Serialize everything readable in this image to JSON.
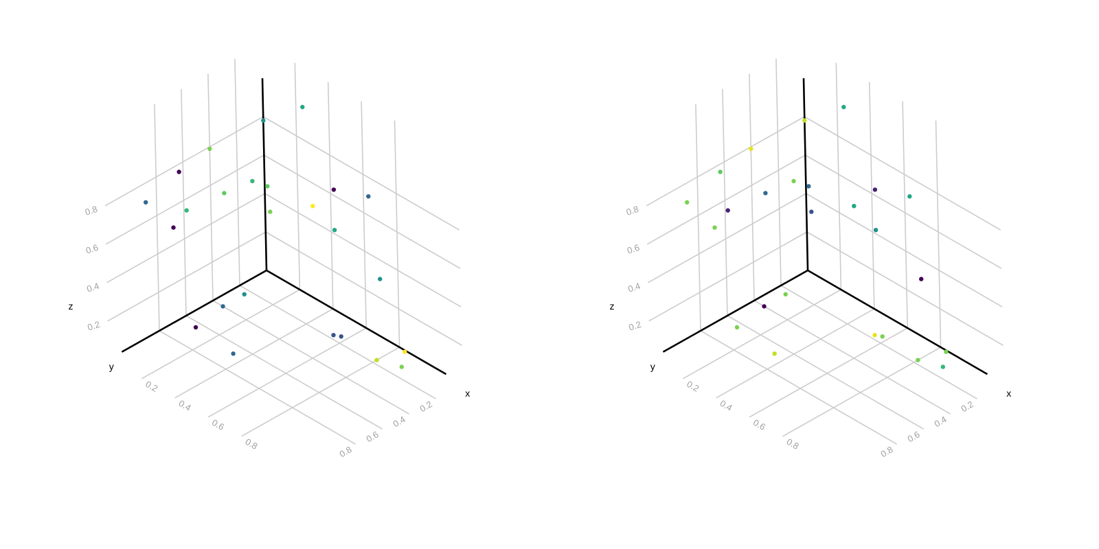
{
  "chart_data": [
    {
      "type": "scatter",
      "title": "",
      "xlabel": "x",
      "ylabel": "y",
      "zlabel": "z",
      "xlim": [
        0,
        1
      ],
      "ylim": [
        0,
        1
      ],
      "zlim": [
        0,
        1
      ],
      "x_ticks": [
        "0.2",
        "0.4",
        "0.6",
        "0.8"
      ],
      "y_ticks": [
        "0.2",
        "0.4",
        "0.6",
        "0.8"
      ],
      "z_ticks": [
        "0.2",
        "0.4",
        "0.6",
        "0.8"
      ],
      "colormap": "viridis",
      "grid": true,
      "points": [
        {
          "x": 0.24,
          "y": 0.0,
          "z": 0.97,
          "c": "#23a884"
        },
        {
          "x": 0.42,
          "y": 0.0,
          "z": 0.63,
          "c": "#440154"
        },
        {
          "x": 0.63,
          "y": 0.0,
          "z": 0.7,
          "c": "#31688e"
        },
        {
          "x": 0.29,
          "y": 0.0,
          "z": 0.48,
          "c": "#fde725"
        },
        {
          "x": 0.42,
          "y": 0.0,
          "z": 0.42,
          "c": "#22a884"
        },
        {
          "x": 0.69,
          "y": 0.0,
          "z": 0.3,
          "c": "#21918c"
        },
        {
          "x": 0.03,
          "y": 0.0,
          "z": 0.32,
          "c": "#7ad151"
        },
        {
          "x": 0.0,
          "y": 0.0,
          "z": 0.78,
          "c": "#21918c"
        },
        {
          "x": 0.0,
          "y": 0.4,
          "z": 0.79,
          "c": "#7ad151"
        },
        {
          "x": 0.0,
          "y": 0.63,
          "z": 0.76,
          "c": "#440154"
        },
        {
          "x": 0.0,
          "y": 0.88,
          "z": 0.7,
          "c": "#31688e"
        },
        {
          "x": 0.0,
          "y": 0.58,
          "z": 0.54,
          "c": "#35b779"
        },
        {
          "x": 0.0,
          "y": 0.68,
          "z": 0.49,
          "c": "#440154"
        },
        {
          "x": 0.0,
          "y": 0.3,
          "z": 0.52,
          "c": "#5ec962"
        },
        {
          "x": 0.0,
          "y": 0.09,
          "z": 0.5,
          "c": "#35b779"
        },
        {
          "x": 0.0,
          "y": -0.02,
          "z": 0.43,
          "c": "#5ec962"
        },
        {
          "x": 0.06,
          "y": 0.24,
          "z": 0.0,
          "c": "#21918c"
        },
        {
          "x": 0.06,
          "y": 0.4,
          "z": 0.0,
          "c": "#31688e"
        },
        {
          "x": 0.09,
          "y": 0.64,
          "z": 0.0,
          "c": "#440154"
        },
        {
          "x": 0.34,
          "y": 0.67,
          "z": 0.0,
          "c": "#31688e"
        },
        {
          "x": 0.54,
          "y": 0.17,
          "z": 0.0,
          "c": "#3b528b"
        },
        {
          "x": 0.57,
          "y": 0.15,
          "z": 0.0,
          "c": "#3b528b"
        },
        {
          "x": 0.84,
          "y": 0.01,
          "z": 0.0,
          "c": "#fde725"
        },
        {
          "x": 0.8,
          "y": 0.17,
          "z": 0.0,
          "c": "#c2df23"
        },
        {
          "x": 0.91,
          "y": 0.12,
          "z": 0.0,
          "c": "#7ad151"
        }
      ]
    },
    {
      "type": "scatter",
      "title": "",
      "xlabel": "x",
      "ylabel": "y",
      "zlabel": "z",
      "xlim": [
        0,
        1
      ],
      "ylim": [
        0,
        1
      ],
      "zlim": [
        0,
        1
      ],
      "x_ticks": [
        "0.2",
        "0.4",
        "0.6",
        "0.8"
      ],
      "y_ticks": [
        "0.2",
        "0.4",
        "0.6",
        "0.8"
      ],
      "z_ticks": [
        "0.2",
        "0.4",
        "0.6",
        "0.8"
      ],
      "colormap": "viridis",
      "grid": true,
      "points": [
        {
          "x": 0.24,
          "y": 0.0,
          "z": 0.97,
          "c": "#23a884"
        },
        {
          "x": 0.42,
          "y": 0.0,
          "z": 0.63,
          "c": "#481f70"
        },
        {
          "x": 0.63,
          "y": 0.0,
          "z": 0.7,
          "c": "#22a884"
        },
        {
          "x": 0.29,
          "y": 0.0,
          "z": 0.48,
          "c": "#22a884"
        },
        {
          "x": 0.42,
          "y": 0.0,
          "z": 0.42,
          "c": "#21918c"
        },
        {
          "x": 0.69,
          "y": 0.0,
          "z": 0.3,
          "c": "#440154"
        },
        {
          "x": 0.03,
          "y": 0.0,
          "z": 0.32,
          "c": "#3b528b"
        },
        {
          "x": 0.0,
          "y": 0.0,
          "z": 0.78,
          "c": "#c2df23"
        },
        {
          "x": 0.0,
          "y": 0.4,
          "z": 0.79,
          "c": "#e5e419"
        },
        {
          "x": 0.0,
          "y": 0.63,
          "z": 0.76,
          "c": "#5ec962"
        },
        {
          "x": 0.0,
          "y": 0.88,
          "z": 0.7,
          "c": "#7ad151"
        },
        {
          "x": 0.0,
          "y": 0.58,
          "z": 0.54,
          "c": "#481f70"
        },
        {
          "x": 0.0,
          "y": 0.68,
          "z": 0.49,
          "c": "#7ad151"
        },
        {
          "x": 0.0,
          "y": 0.3,
          "z": 0.52,
          "c": "#31688e"
        },
        {
          "x": 0.0,
          "y": 0.09,
          "z": 0.5,
          "c": "#7ad151"
        },
        {
          "x": 0.0,
          "y": -0.02,
          "z": 0.43,
          "c": "#31688e"
        },
        {
          "x": 0.06,
          "y": 0.24,
          "z": 0.0,
          "c": "#7ad151"
        },
        {
          "x": 0.06,
          "y": 0.4,
          "z": 0.0,
          "c": "#440154"
        },
        {
          "x": 0.09,
          "y": 0.64,
          "z": 0.0,
          "c": "#7ad151"
        },
        {
          "x": 0.34,
          "y": 0.67,
          "z": 0.0,
          "c": "#c2df23"
        },
        {
          "x": 0.54,
          "y": 0.17,
          "z": 0.0,
          "c": "#e5e419"
        },
        {
          "x": 0.57,
          "y": 0.15,
          "z": 0.0,
          "c": "#7ad151"
        },
        {
          "x": 0.84,
          "y": 0.01,
          "z": 0.0,
          "c": "#7ad151"
        },
        {
          "x": 0.8,
          "y": 0.17,
          "z": 0.0,
          "c": "#7ad151"
        },
        {
          "x": 0.91,
          "y": 0.12,
          "z": 0.0,
          "c": "#35b779"
        }
      ]
    }
  ]
}
